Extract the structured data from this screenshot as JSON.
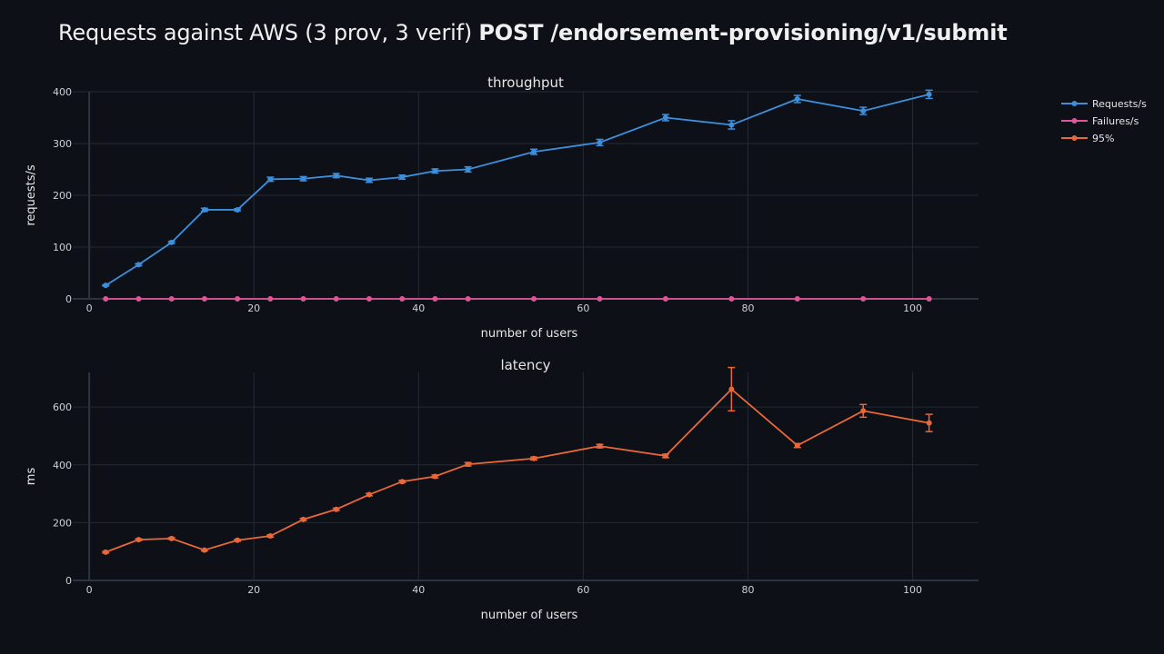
{
  "title_prefix": "Requests against AWS (3 prov, 3 verif) ",
  "title_bold": "POST /endorsement-provisioning/v1/submit",
  "chart_data": [
    {
      "type": "line",
      "title": "throughput",
      "xlabel": "number of users",
      "ylabel": "requests/s",
      "xlim": [
        -2,
        108
      ],
      "ylim": [
        0,
        400
      ],
      "xticks": [
        0,
        20,
        40,
        60,
        80,
        100
      ],
      "yticks": [
        0,
        100,
        200,
        300,
        400
      ],
      "grid": true,
      "series": [
        {
          "name": "Requests/s",
          "color": "#3d8fdc",
          "x": [
            2,
            6,
            10,
            14,
            18,
            22,
            26,
            30,
            34,
            38,
            42,
            46,
            54,
            62,
            70,
            78,
            86,
            94,
            102
          ],
          "y": [
            26,
            66,
            109,
            172,
            172,
            231,
            232,
            238,
            229,
            235,
            247,
            250,
            284,
            302,
            350,
            336,
            386,
            363,
            395
          ],
          "error": [
            1,
            2,
            2,
            3,
            2,
            4,
            4,
            4,
            4,
            4,
            4,
            5,
            5,
            6,
            6,
            8,
            7,
            7,
            8
          ]
        },
        {
          "name": "Failures/s",
          "color": "#e0559a",
          "x": [
            2,
            6,
            10,
            14,
            18,
            22,
            26,
            30,
            34,
            38,
            42,
            46,
            54,
            62,
            70,
            78,
            86,
            94,
            102
          ],
          "y": [
            0,
            0,
            0,
            0,
            0,
            0,
            0,
            0,
            0,
            0,
            0,
            0,
            0,
            0,
            0,
            0,
            0,
            0,
            0
          ]
        }
      ]
    },
    {
      "type": "line",
      "title": "latency",
      "xlabel": "number of users",
      "ylabel": "ms",
      "xlim": [
        -2,
        108
      ],
      "ylim": [
        0,
        720
      ],
      "xticks": [
        0,
        20,
        40,
        60,
        80,
        100
      ],
      "yticks": [
        0,
        200,
        400,
        600
      ],
      "grid": true,
      "series": [
        {
          "name": "95%",
          "color": "#e8683a",
          "x": [
            2,
            6,
            10,
            14,
            18,
            22,
            26,
            30,
            34,
            38,
            42,
            46,
            54,
            62,
            70,
            78,
            86,
            94,
            102
          ],
          "y": [
            98,
            141,
            145,
            105,
            139,
            154,
            211,
            246,
            297,
            342,
            360,
            402,
            422,
            465,
            431,
            662,
            467,
            587,
            545
          ],
          "error": [
            3,
            3,
            3,
            3,
            3,
            4,
            4,
            4,
            4,
            4,
            5,
            6,
            5,
            6,
            6,
            75,
            7,
            22,
            30
          ]
        }
      ]
    }
  ],
  "legend": {
    "placement": "top-right",
    "items": [
      {
        "label": "Requests/s",
        "color": "#3d8fdc"
      },
      {
        "label": "Failures/s",
        "color": "#e0559a"
      },
      {
        "label": "95%",
        "color": "#e8683a"
      }
    ]
  }
}
